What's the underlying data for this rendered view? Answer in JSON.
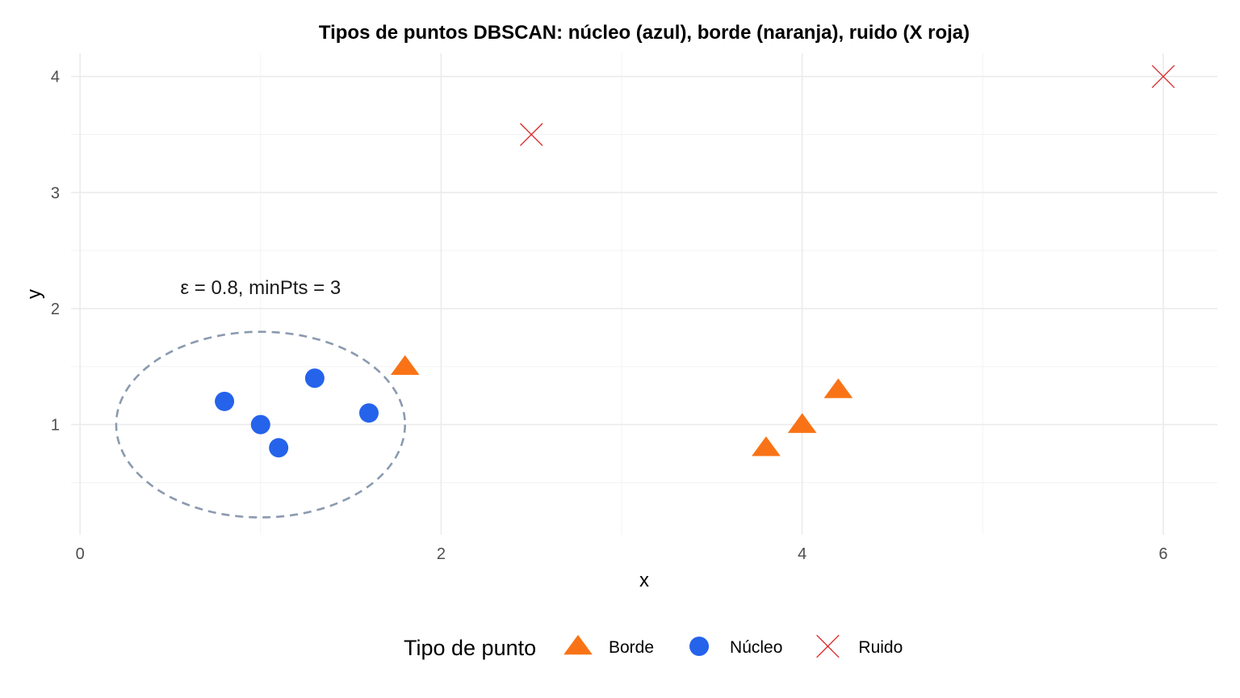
{
  "chart_data": {
    "type": "scatter",
    "title": "Tipos de puntos DBSCAN: núcleo (azul), borde (naranja), ruido (X roja)",
    "xlabel": "x",
    "ylabel": "y",
    "xlim": [
      -0.05,
      6.3
    ],
    "ylim": [
      0.05,
      4.2
    ],
    "x_ticks": [
      0,
      2,
      4,
      6
    ],
    "y_ticks": [
      1,
      2,
      3,
      4
    ],
    "grid": true,
    "legend": {
      "title": "Tipo de punto",
      "position": "bottom"
    },
    "series": [
      {
        "name": "Borde",
        "shape": "triangle",
        "color": "#f97316",
        "points": [
          [
            1.8,
            1.5
          ],
          [
            3.8,
            0.8
          ],
          [
            4.0,
            1.0
          ],
          [
            4.2,
            1.3
          ]
        ]
      },
      {
        "name": "Núcleo",
        "shape": "circle",
        "color": "#2563eb",
        "points": [
          [
            0.8,
            1.2
          ],
          [
            1.0,
            1.0
          ],
          [
            1.1,
            0.8
          ],
          [
            1.3,
            1.4
          ],
          [
            1.6,
            1.1
          ]
        ]
      },
      {
        "name": "Ruido",
        "shape": "x",
        "color": "#dc2626",
        "points": [
          [
            2.5,
            3.5
          ],
          [
            6.0,
            4.0
          ]
        ]
      }
    ],
    "epsilon_circle": {
      "center": [
        1.0,
        1.0
      ],
      "radius": 0.8,
      "color": "#8b9ab0",
      "style": "dashed"
    },
    "annotation": {
      "text": "ε = 0.8, minPts = 3",
      "x": 1.0,
      "y": 2.18
    }
  }
}
